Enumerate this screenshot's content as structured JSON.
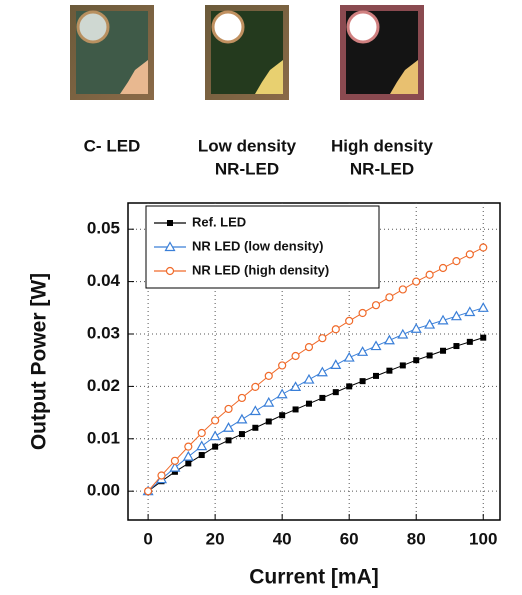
{
  "image_labels": [
    [
      "C- LED"
    ],
    [
      "Low density",
      "NR-LED"
    ],
    [
      "High density",
      "NR-LED"
    ]
  ],
  "chart_data": {
    "type": "line",
    "x_label": "Current [mA]",
    "y_label": "Output Power [W]",
    "x": [
      0,
      4,
      8,
      12,
      16,
      20,
      24,
      28,
      32,
      36,
      40,
      44,
      48,
      52,
      56,
      60,
      64,
      68,
      72,
      76,
      80,
      84,
      88,
      92,
      96,
      100
    ],
    "series": [
      {
        "name": "Ref. LED",
        "color": "#000000",
        "marker": "square",
        "values": [
          0,
          0.0019,
          0.0037,
          0.0053,
          0.0069,
          0.0085,
          0.0097,
          0.0109,
          0.0121,
          0.0133,
          0.0145,
          0.0156,
          0.0167,
          0.0178,
          0.0189,
          0.02,
          0.021,
          0.022,
          0.023,
          0.024,
          0.025,
          0.0259,
          0.0268,
          0.0277,
          0.0285,
          0.0293
        ]
      },
      {
        "name": "NR LED (low density)",
        "color": "#3a7fd8",
        "marker": "triangle",
        "values": [
          0,
          0.0023,
          0.0045,
          0.0066,
          0.0086,
          0.0105,
          0.0121,
          0.0137,
          0.0153,
          0.0169,
          0.0185,
          0.0199,
          0.0213,
          0.0227,
          0.0241,
          0.0255,
          0.0266,
          0.0277,
          0.0288,
          0.0299,
          0.031,
          0.0318,
          0.0326,
          0.0334,
          0.0342,
          0.035
        ]
      },
      {
        "name": "NR LED (high density)",
        "color": "#f06a2a",
        "marker": "circle",
        "values": [
          0,
          0.003,
          0.0058,
          0.0085,
          0.0111,
          0.0135,
          0.0157,
          0.0178,
          0.0199,
          0.022,
          0.024,
          0.0258,
          0.0275,
          0.0292,
          0.0309,
          0.0325,
          0.034,
          0.0355,
          0.037,
          0.0385,
          0.04,
          0.0413,
          0.0426,
          0.0439,
          0.0452,
          0.0465
        ]
      }
    ],
    "xlim": [
      -6,
      105
    ],
    "ylim": [
      -0.0055,
      0.055
    ],
    "xticks": [
      0,
      20,
      40,
      60,
      80,
      100
    ],
    "yticks": [
      {
        "value": 0,
        "label": "0.00"
      },
      0.01,
      0.02,
      0.03,
      0.04,
      0.05
    ],
    "grid": true,
    "legend": "upper left"
  }
}
